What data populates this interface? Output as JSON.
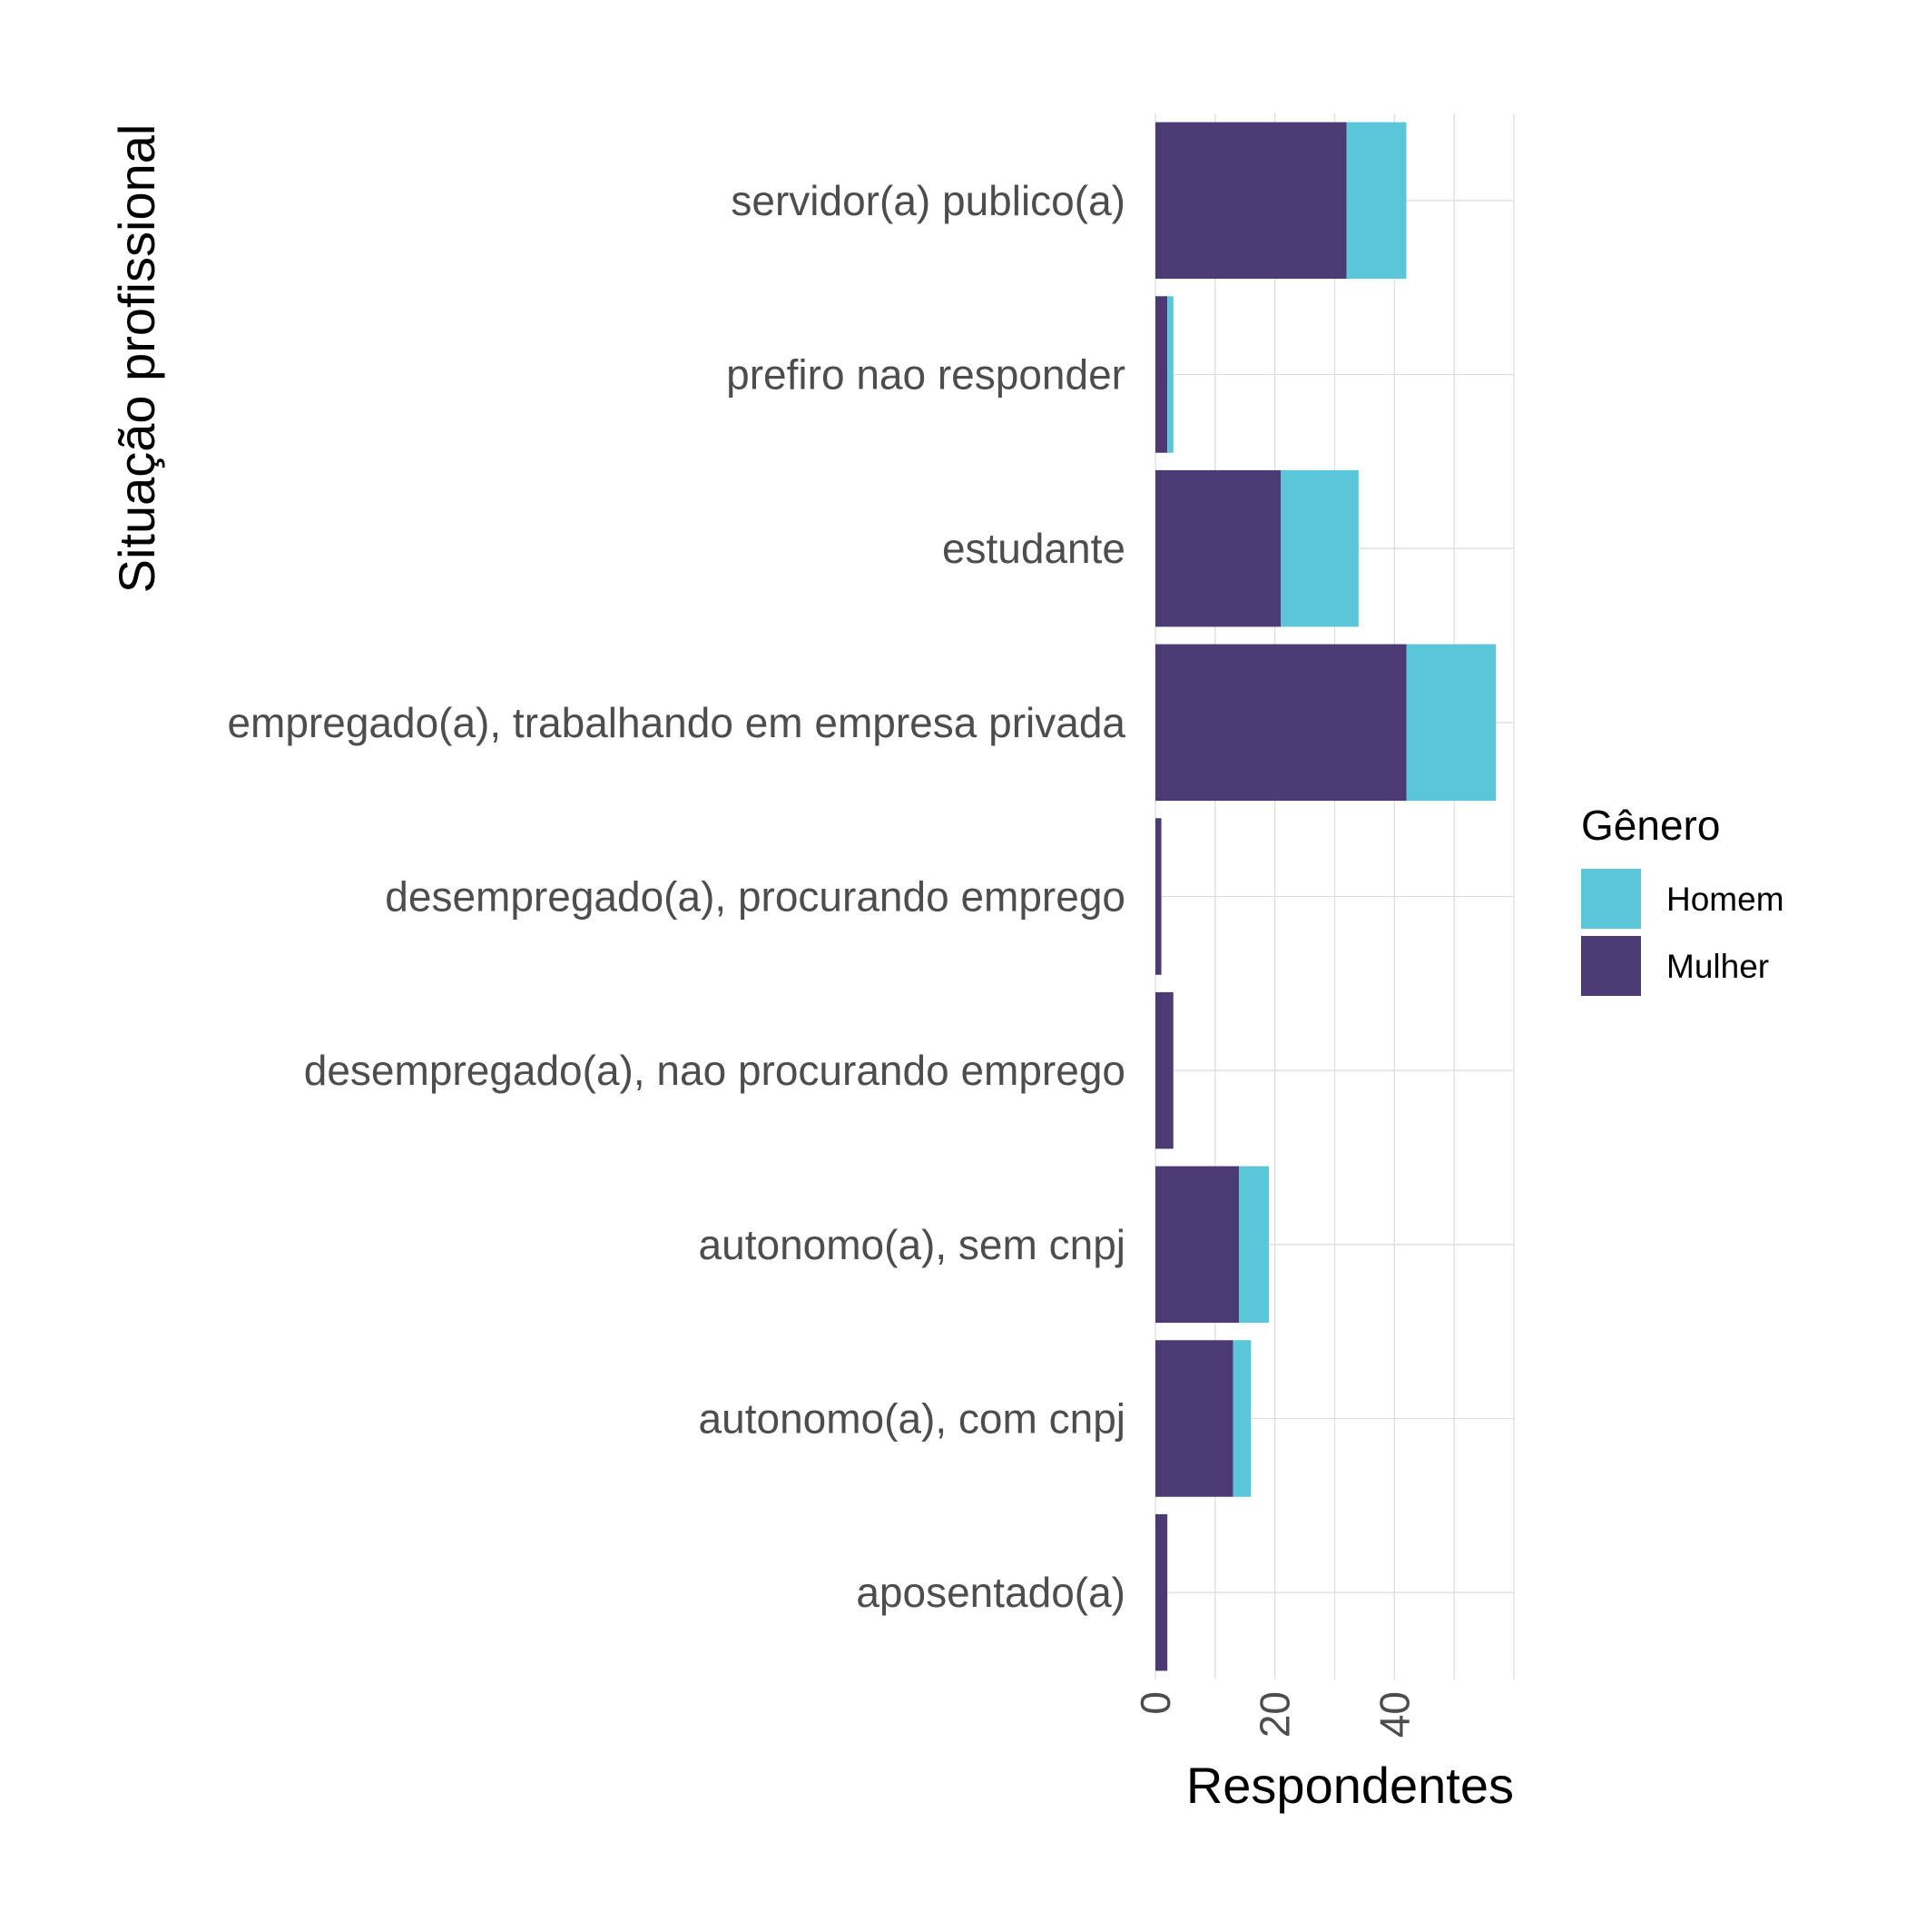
{
  "chart_data": {
    "type": "bar",
    "orientation": "horizontal",
    "stacked": true,
    "xlabel": "Respondentes",
    "ylabel": "Situação profissional",
    "xlim": [
      0,
      60
    ],
    "xticks": [
      0,
      20,
      40
    ],
    "grid": true,
    "legend_position": "right",
    "legend_title": "Gênero",
    "categories": [
      "servidor(a) publico(a)",
      "prefiro nao responder",
      "estudante",
      "empregado(a), trabalhando em empresa privada",
      "desempregado(a), procurando emprego",
      "desempregado(a), nao procurando emprego",
      "autonomo(a), sem cnpj",
      "autonomo(a), com cnpj",
      "aposentado(a)"
    ],
    "series": [
      {
        "name": "Mulher",
        "color": "#4b3a74",
        "values": [
          32,
          2,
          21,
          42,
          1,
          3,
          14,
          13,
          2
        ]
      },
      {
        "name": "Homem",
        "color": "#5ac6d8",
        "values": [
          10,
          1,
          13,
          15,
          0,
          0,
          5,
          3,
          0
        ]
      }
    ],
    "legend_order": [
      "Homem",
      "Mulher"
    ]
  }
}
